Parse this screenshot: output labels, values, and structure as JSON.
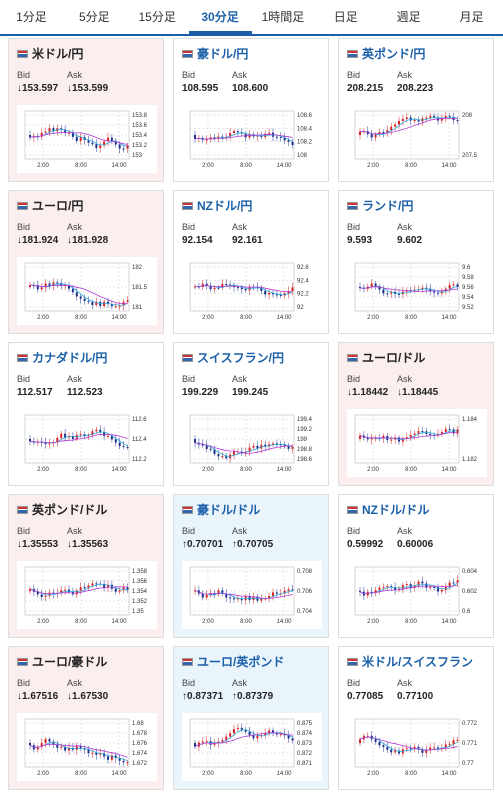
{
  "tabs": [
    "1分足",
    "5分足",
    "15分足",
    "30分足",
    "1時間足",
    "日足",
    "週足",
    "月足"
  ],
  "active_tab": 3,
  "labels": {
    "bid": "Bid",
    "ask": "Ask"
  },
  "cards": [
    {
      "name": "米ドル/円",
      "dir": "down",
      "bid": "153.597",
      "ask": "153.599",
      "ticks": [
        "153.8",
        "153.6",
        "153.4",
        "153.2",
        "153"
      ],
      "x": [
        "2:00",
        "8:00",
        "14:00"
      ]
    },
    {
      "name": "豪ドル/円",
      "dir": "none",
      "bid": "108.595",
      "ask": "108.600",
      "ticks": [
        "108.6",
        "108.4",
        "108.2",
        "108"
      ],
      "x": [
        "2:00",
        "8:00",
        "14:00"
      ]
    },
    {
      "name": "英ポンド/円",
      "dir": "none",
      "bid": "208.215",
      "ask": "208.223",
      "ticks": [
        "208",
        "207.5"
      ],
      "x": [
        "2:00",
        "8:00",
        "14:00"
      ]
    },
    {
      "name": "ユーロ/円",
      "dir": "down",
      "bid": "181.924",
      "ask": "181.928",
      "ticks": [
        "182",
        "181.5",
        "181"
      ],
      "x": [
        "2:00",
        "8:00",
        "14:00"
      ]
    },
    {
      "name": "NZドル/円",
      "dir": "none",
      "bid": "92.154",
      "ask": "92.161",
      "ticks": [
        "92.6",
        "92.4",
        "92.2",
        "92"
      ],
      "x": [
        "2:00",
        "8:00",
        "14:00"
      ]
    },
    {
      "name": "ランド/円",
      "dir": "none",
      "bid": "9.593",
      "ask": "9.602",
      "ticks": [
        "9.6",
        "9.58",
        "9.56",
        "9.54",
        "9.52"
      ],
      "x": [
        "2:00",
        "8:00",
        "14:00"
      ]
    },
    {
      "name": "カナダドル/円",
      "dir": "none",
      "bid": "112.517",
      "ask": "112.523",
      "ticks": [
        "112.6",
        "112.4",
        "112.2"
      ],
      "x": [
        "2:00",
        "8:00",
        "14:00"
      ]
    },
    {
      "name": "スイスフラン/円",
      "dir": "none",
      "bid": "199.229",
      "ask": "199.245",
      "ticks": [
        "199.4",
        "199.2",
        "199",
        "198.8",
        "198.6"
      ],
      "x": [
        "2:00",
        "8:00",
        "14:00"
      ]
    },
    {
      "name": "ユーロ/ドル",
      "dir": "down",
      "bid": "1.18442",
      "ask": "1.18445",
      "ticks": [
        "1.184",
        "1.182"
      ],
      "x": [
        "2:00",
        "8:00",
        "14:00"
      ]
    },
    {
      "name": "英ポンド/ドル",
      "dir": "down",
      "bid": "1.35553",
      "ask": "1.35563",
      "ticks": [
        "1.358",
        "1.356",
        "1.354",
        "1.352",
        "1.35"
      ],
      "x": [
        "2:00",
        "8:00",
        "14:00"
      ]
    },
    {
      "name": "豪ドル/ドル",
      "dir": "up",
      "bid": "0.70701",
      "ask": "0.70705",
      "ticks": [
        "0.708",
        "0.706",
        "0.704"
      ],
      "x": [
        "2:00",
        "8:00",
        "14:00"
      ]
    },
    {
      "name": "NZドル/ドル",
      "dir": "none",
      "bid": "0.59992",
      "ask": "0.60006",
      "ticks": [
        "0.604",
        "0.602",
        "0.6"
      ],
      "x": [
        "2:00",
        "8:00",
        "14:00"
      ]
    },
    {
      "name": "ユーロ/豪ドル",
      "dir": "down",
      "bid": "1.67516",
      "ask": "1.67530",
      "ticks": [
        "1.68",
        "1.678",
        "1.676",
        "1.674",
        "1.672"
      ],
      "x": [
        "2:00",
        "8:00",
        "14:00"
      ]
    },
    {
      "name": "ユーロ/英ポンド",
      "dir": "up",
      "bid": "0.87371",
      "ask": "0.87379",
      "ticks": [
        "0.875",
        "0.874",
        "0.873",
        "0.872",
        "0.871"
      ],
      "x": [
        "2:00",
        "8:00",
        "14:00"
      ]
    },
    {
      "name": "米ドル/スイスフラン",
      "dir": "none",
      "bid": "0.77085",
      "ask": "0.77100",
      "ticks": [
        "0.772",
        "0.771",
        "0.77"
      ],
      "x": [
        "2:00",
        "8:00",
        "14:00"
      ]
    }
  ]
}
